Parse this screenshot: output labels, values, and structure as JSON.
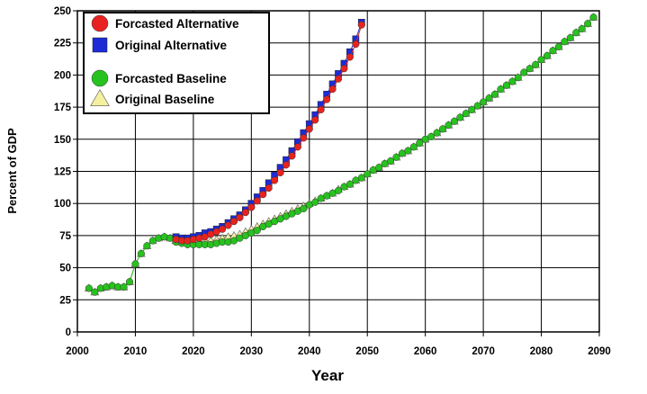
{
  "chart_data": {
    "type": "line",
    "title": "",
    "xlabel": "Year",
    "ylabel": "Percent of GDP",
    "xlim": [
      2000,
      2090
    ],
    "ylim": [
      0,
      250
    ],
    "x_ticks": [
      2000,
      2010,
      2020,
      2030,
      2040,
      2050,
      2060,
      2070,
      2080,
      2090
    ],
    "y_ticks": [
      0,
      25,
      50,
      75,
      100,
      125,
      150,
      175,
      200,
      225,
      250
    ],
    "grid": true,
    "legend_position": "top-left",
    "series": [
      {
        "name": "Forcasted Alternative",
        "marker": "circle",
        "color": "#e8231f",
        "x": [
          2017,
          2018,
          2019,
          2020,
          2021,
          2022,
          2023,
          2024,
          2025,
          2026,
          2027,
          2028,
          2029,
          2030,
          2031,
          2032,
          2033,
          2034,
          2035,
          2036,
          2037,
          2038,
          2039,
          2040,
          2041,
          2042,
          2043,
          2044,
          2045,
          2046,
          2047,
          2048,
          2049
        ],
        "y": [
          72,
          71,
          71,
          72,
          73,
          74,
          76,
          78,
          80,
          83,
          86,
          89,
          93,
          97,
          102,
          107,
          112,
          118,
          124,
          130,
          137,
          144,
          151,
          158,
          165,
          173,
          181,
          189,
          197,
          205,
          214,
          224,
          239
        ]
      },
      {
        "name": "Original Alternative",
        "marker": "square",
        "color": "#1c2bd6",
        "x": [
          2017,
          2018,
          2019,
          2020,
          2021,
          2022,
          2023,
          2024,
          2025,
          2026,
          2027,
          2028,
          2029,
          2030,
          2031,
          2032,
          2033,
          2034,
          2035,
          2036,
          2037,
          2038,
          2039,
          2040,
          2041,
          2042,
          2043,
          2044,
          2045,
          2046,
          2047,
          2048,
          2049
        ],
        "y": [
          74,
          73,
          73,
          74,
          75,
          77,
          78,
          80,
          82,
          85,
          88,
          91,
          95,
          100,
          105,
          110,
          116,
          122,
          128,
          134,
          141,
          148,
          155,
          162,
          169,
          177,
          185,
          193,
          201,
          209,
          218,
          228,
          241
        ]
      },
      {
        "name": "Forcasted Baseline",
        "marker": "circle",
        "color": "#27c21e",
        "x": [
          2002,
          2003,
          2004,
          2005,
          2006,
          2007,
          2008,
          2009,
          2010,
          2011,
          2012,
          2013,
          2014,
          2015,
          2016,
          2017,
          2018,
          2019,
          2020,
          2021,
          2022,
          2023,
          2024,
          2025,
          2026,
          2027,
          2028,
          2029,
          2030,
          2031,
          2032,
          2033,
          2034,
          2035,
          2036,
          2037,
          2038,
          2039,
          2040,
          2041,
          2042,
          2043,
          2044,
          2045,
          2046,
          2047,
          2048,
          2049,
          2050,
          2051,
          2052,
          2053,
          2054,
          2055,
          2056,
          2057,
          2058,
          2059,
          2060,
          2061,
          2062,
          2063,
          2064,
          2065,
          2066,
          2067,
          2068,
          2069,
          2070,
          2071,
          2072,
          2073,
          2074,
          2075,
          2076,
          2077,
          2078,
          2079,
          2080,
          2081,
          2082,
          2083,
          2084,
          2085,
          2086,
          2087,
          2088,
          2089
        ],
        "y": [
          34,
          31,
          34,
          35,
          36,
          35,
          35,
          39,
          53,
          61,
          67,
          71,
          73,
          74,
          73,
          70,
          69,
          68,
          68,
          68,
          68,
          68,
          69,
          70,
          70,
          71,
          73,
          75,
          77,
          79,
          82,
          84,
          86,
          88,
          90,
          92,
          94,
          96,
          99,
          101,
          104,
          106,
          108,
          110,
          113,
          115,
          118,
          120,
          123,
          126,
          128,
          131,
          133,
          136,
          139,
          141,
          144,
          147,
          150,
          152,
          155,
          158,
          161,
          164,
          167,
          170,
          173,
          176,
          179,
          182,
          185,
          189,
          192,
          195,
          198,
          202,
          205,
          208,
          212,
          215,
          219,
          222,
          226,
          229,
          233,
          236,
          240,
          245
        ]
      },
      {
        "name": "Original Baseline",
        "marker": "triangle",
        "color": "#f5f0a0",
        "x": [
          2002,
          2003,
          2004,
          2005,
          2006,
          2007,
          2008,
          2009,
          2010,
          2011,
          2012,
          2013,
          2014,
          2015,
          2016,
          2017,
          2018,
          2019,
          2020,
          2021,
          2022,
          2023,
          2024,
          2025,
          2026,
          2027,
          2028,
          2029,
          2030,
          2031,
          2032,
          2033,
          2034,
          2035,
          2036,
          2037,
          2038,
          2039,
          2040,
          2041,
          2042,
          2043,
          2044,
          2045,
          2046,
          2047,
          2048,
          2049,
          2050,
          2051,
          2052,
          2053,
          2054,
          2055,
          2056,
          2057,
          2058,
          2059,
          2060,
          2061,
          2062,
          2063,
          2064,
          2065,
          2066,
          2067,
          2068,
          2069,
          2070,
          2071,
          2072,
          2073,
          2074,
          2075,
          2076,
          2077,
          2078,
          2079,
          2080,
          2081,
          2082,
          2083,
          2084,
          2085,
          2086,
          2087,
          2088,
          2089
        ],
        "y": [
          34,
          31,
          34,
          35,
          36,
          35,
          35,
          39,
          53,
          61,
          67,
          71,
          73,
          74,
          73,
          71,
          70,
          70,
          70,
          70,
          71,
          71,
          72,
          73,
          74,
          75,
          76,
          78,
          80,
          82,
          84,
          86,
          88,
          90,
          92,
          94,
          96,
          98,
          100,
          102,
          104,
          106,
          108,
          111,
          113,
          115,
          118,
          120,
          123,
          126,
          128,
          131,
          133,
          136,
          139,
          141,
          144,
          147,
          150,
          152,
          155,
          158,
          161,
          164,
          167,
          170,
          173,
          176,
          179,
          182,
          185,
          189,
          192,
          195,
          198,
          202,
          205,
          208,
          212,
          215,
          219,
          222,
          226,
          229,
          233,
          236,
          240,
          245
        ]
      }
    ]
  }
}
